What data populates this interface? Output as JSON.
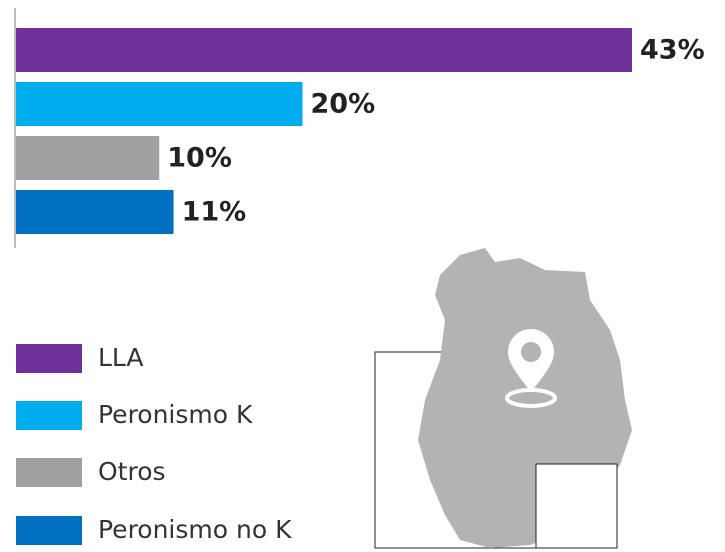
{
  "chart_data": {
    "type": "bar",
    "categories": [
      "LLA",
      "Peronismo K",
      "Otros",
      "Peronismo no K"
    ],
    "values": [
      43,
      20,
      10,
      11
    ],
    "value_labels": [
      "43%",
      "20%",
      "10%",
      "11%"
    ],
    "colors": [
      "#70309c",
      "#00aeef",
      "#a0a0a0",
      "#0070c0"
    ],
    "legend": true
  }
}
